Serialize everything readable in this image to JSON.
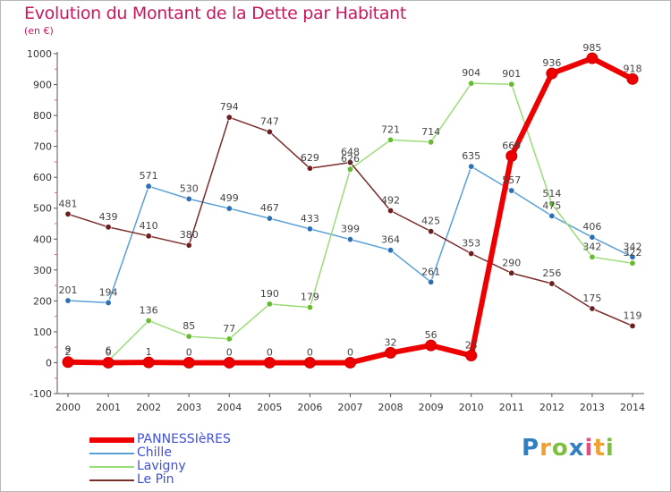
{
  "header": {
    "title": "Evolution du Montant de la Dette par Habitant",
    "subtitle": "(en €)"
  },
  "brand": {
    "logo_text": "Proxiti",
    "logo_colors": [
      "#2f7fc1",
      "#f0a030",
      "#7fbf3f",
      "#2f7fc1",
      "#e05080",
      "#f0a030",
      "#7fbf3f"
    ]
  },
  "colors": {
    "text_accent": "#c8175f",
    "legend_text": "#3f4fd8",
    "axis": "#555555",
    "grid_tick": "#e06080"
  },
  "chart_data": {
    "type": "line",
    "title": "Evolution du Montant de la Dette par Habitant",
    "ylabel": "(en €)",
    "xlabel": "",
    "x": [
      "2000",
      "2001",
      "2002",
      "2003",
      "2004",
      "2005",
      "2006",
      "2007",
      "2008",
      "2009",
      "2010",
      "2011",
      "2012",
      "2013",
      "2014"
    ],
    "ylim": [
      -100,
      1000
    ],
    "yticks": [
      -100,
      0,
      100,
      200,
      300,
      400,
      500,
      600,
      700,
      800,
      900,
      1000
    ],
    "legend_position": "bottom-left",
    "series": [
      {
        "name": "PANNESSIèRES",
        "color": "#ee0000",
        "marker_color": "#ee0000",
        "width": 6,
        "values": [
          2,
          0,
          1,
          0,
          0,
          0,
          0,
          0,
          32,
          56,
          23,
          669,
          936,
          985,
          918
        ],
        "labels": [
          "2",
          "0",
          "1",
          "0",
          "0",
          "0",
          "0",
          "0",
          "32",
          "56",
          "23",
          "669",
          "936",
          "985",
          "918"
        ]
      },
      {
        "name": "Chille",
        "color": "#5aa0d8",
        "marker_color": "#2d6fb3",
        "width": 1.5,
        "values": [
          201,
          194,
          571,
          530,
          499,
          467,
          433,
          399,
          364,
          261,
          635,
          557,
          475,
          406,
          342
        ],
        "labels": [
          "201",
          "194",
          "571",
          "530",
          "499",
          "467",
          "433",
          "399",
          "364",
          "261",
          "635",
          "557",
          "475",
          "406",
          "342"
        ]
      },
      {
        "name": "Lavigny",
        "color": "#99dd77",
        "marker_color": "#66bb33",
        "width": 1.5,
        "values": [
          9,
          6,
          136,
          85,
          77,
          190,
          179,
          626,
          721,
          714,
          904,
          901,
          514,
          342,
          322
        ],
        "labels": [
          "9",
          "6",
          "136",
          "85",
          "77",
          "190",
          "179",
          "626",
          "721",
          "714",
          "904",
          "901",
          "514",
          "342",
          "322"
        ]
      },
      {
        "name": "Le Pin",
        "color": "#7a2b2b",
        "marker_color": "#6b1f1f",
        "width": 1.5,
        "values": [
          481,
          439,
          410,
          380,
          794,
          747,
          629,
          648,
          492,
          425,
          353,
          290,
          256,
          175,
          119
        ],
        "labels": [
          "481",
          "439",
          "410",
          "380",
          "794",
          "747",
          "629",
          "648",
          "492",
          "425",
          "353",
          "290",
          "256",
          "175",
          "119"
        ]
      }
    ]
  }
}
